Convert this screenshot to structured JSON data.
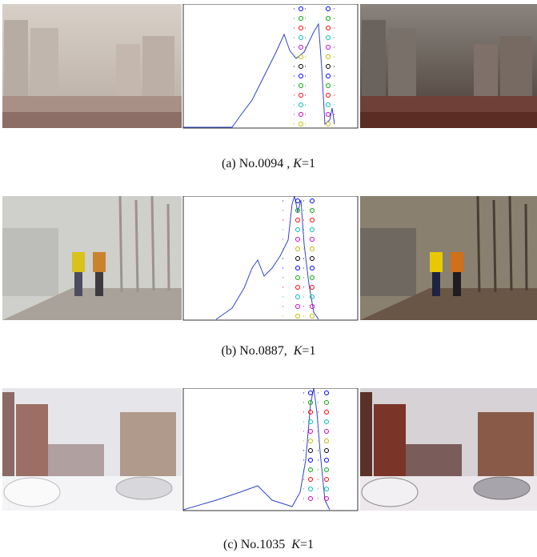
{
  "figures": [
    {
      "caption_prefix": "(a) No.0094 , ",
      "caption_variable": "K",
      "caption_suffix": "=1"
    },
    {
      "caption_prefix": "(b) No.0887,  ",
      "caption_variable": "K",
      "caption_suffix": "=1"
    },
    {
      "caption_prefix": "(c) No.1035  ",
      "caption_variable": "K",
      "caption_suffix": "=1"
    }
  ]
}
